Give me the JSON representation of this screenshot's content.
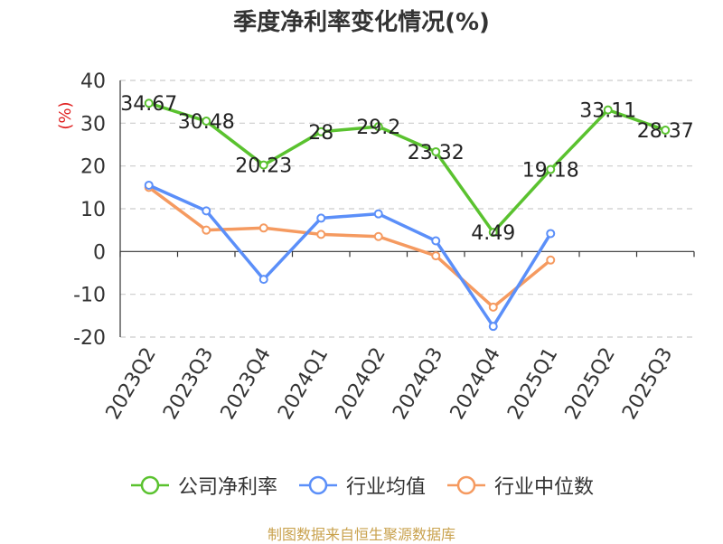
{
  "chart_data": {
    "type": "line",
    "title": "季度净利率变化情况(%)",
    "ylabel": "(%)",
    "xlabel": "",
    "ylim": [
      -20,
      40
    ],
    "yticks": [
      -20,
      -10,
      0,
      10,
      20,
      30,
      40
    ],
    "grid": true,
    "legend_position": "bottom",
    "categories": [
      "2023Q2",
      "2023Q3",
      "2023Q4",
      "2024Q1",
      "2024Q2",
      "2024Q3",
      "2024Q4",
      "2025Q1",
      "2025Q2",
      "2025Q3"
    ],
    "series": [
      {
        "name": "公司净利率",
        "color": "#5ac22f",
        "values": [
          34.67,
          30.48,
          20.23,
          28,
          29.2,
          23.32,
          4.49,
          19.18,
          33.11,
          28.37
        ],
        "labels": [
          "34.67",
          "30.48",
          "20.23",
          "28",
          "29.2",
          "23.32",
          "4.49",
          "19.18",
          "33.11",
          "28.37"
        ]
      },
      {
        "name": "行业均值",
        "color": "#5b8ff9",
        "values": [
          15.5,
          9.5,
          -6.5,
          7.8,
          8.8,
          2.5,
          -17.5,
          4.2,
          null,
          null
        ]
      },
      {
        "name": "行业中位数",
        "color": "#f59a60",
        "values": [
          15,
          5,
          5.5,
          4,
          3.5,
          -1,
          -13,
          -2,
          null,
          null
        ]
      }
    ]
  },
  "source_note": "制图数据来自恒生聚源数据库"
}
